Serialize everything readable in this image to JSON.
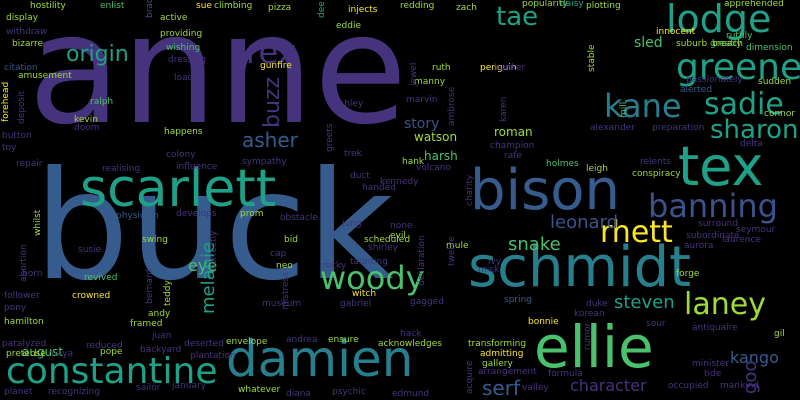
{
  "background": "#000000",
  "palette": {
    "indigo": "#46337e",
    "blue": "#365c8d",
    "slate": "#3b528b",
    "teal": "#277f8e",
    "teal_green": "#1fa187",
    "green": "#4ac16d",
    "lime": "#a0da39",
    "yellow": "#fde725",
    "purple": "#472d7b"
  },
  "words": [
    {
      "text": "anne"
    },
    {
      "text": "buck"
    },
    {
      "text": "schmidt"
    },
    {
      "text": "scarlett"
    },
    {
      "text": "bison"
    },
    {
      "text": "tex"
    },
    {
      "text": "lodge"
    },
    {
      "text": "damien"
    },
    {
      "text": "ellie"
    },
    {
      "text": "constantine"
    },
    {
      "text": "greene"
    },
    {
      "text": "kane"
    },
    {
      "text": "sadie"
    },
    {
      "text": "sharon"
    },
    {
      "text": "banning"
    },
    {
      "text": "rhett"
    },
    {
      "text": "woody"
    },
    {
      "text": "laney"
    },
    {
      "text": "tae"
    },
    {
      "text": "origin"
    },
    {
      "text": "rex"
    },
    {
      "text": "asher"
    },
    {
      "text": "buzz"
    },
    {
      "text": "leonard"
    },
    {
      "text": "snake"
    },
    {
      "text": "eye"
    },
    {
      "text": "melanie"
    },
    {
      "text": "steven"
    },
    {
      "text": "character"
    },
    {
      "text": "serf"
    },
    {
      "text": "kango"
    },
    {
      "text": "goo"
    },
    {
      "text": "story"
    },
    {
      "text": "watson"
    },
    {
      "text": "harsh"
    },
    {
      "text": "roman"
    },
    {
      "text": "sled"
    },
    {
      "text": "august"
    },
    {
      "text": "hostility"
    },
    {
      "text": "enlist"
    },
    {
      "text": "brad"
    },
    {
      "text": "sue"
    },
    {
      "text": "climbing"
    },
    {
      "text": "pizza"
    },
    {
      "text": "dee"
    },
    {
      "text": "injects"
    },
    {
      "text": "redding"
    },
    {
      "text": "zach"
    },
    {
      "text": "popularity"
    },
    {
      "text": "daisy"
    },
    {
      "text": "plotting"
    },
    {
      "text": "apprehended"
    },
    {
      "text": "display"
    },
    {
      "text": "active"
    },
    {
      "text": "eddie"
    },
    {
      "text": "withdraw"
    },
    {
      "text": "providing"
    },
    {
      "text": "bizarre"
    },
    {
      "text": "wishing"
    },
    {
      "text": "dressing"
    },
    {
      "text": "gunfire"
    },
    {
      "text": "penguin"
    },
    {
      "text": "bunker"
    },
    {
      "text": "innocent"
    },
    {
      "text": "ruthly"
    },
    {
      "text": "greatly"
    },
    {
      "text": "suburb"
    },
    {
      "text": "breach"
    },
    {
      "text": "dimension"
    },
    {
      "text": "passionately"
    },
    {
      "text": "sudden"
    },
    {
      "text": "alerted"
    },
    {
      "text": "connor"
    },
    {
      "text": "citation"
    },
    {
      "text": "amusement"
    },
    {
      "text": "forehead"
    },
    {
      "text": "deposit"
    },
    {
      "text": "load"
    },
    {
      "text": "ruth"
    },
    {
      "text": "manny"
    },
    {
      "text": "jewel"
    },
    {
      "text": "stable"
    },
    {
      "text": "ralph"
    },
    {
      "text": "kevin"
    },
    {
      "text": "doom"
    },
    {
      "text": "ashley"
    },
    {
      "text": "marvin"
    },
    {
      "text": "ambrose"
    },
    {
      "text": "karen"
    },
    {
      "text": "mill"
    },
    {
      "text": "alexander"
    },
    {
      "text": "preparation"
    },
    {
      "text": "button"
    },
    {
      "text": "toy"
    },
    {
      "text": "happens"
    },
    {
      "text": "greets"
    },
    {
      "text": "champion"
    },
    {
      "text": "delta"
    },
    {
      "text": "repair"
    },
    {
      "text": "influence"
    },
    {
      "text": "colony"
    },
    {
      "text": "sympathy"
    },
    {
      "text": "trek"
    },
    {
      "text": "hank"
    },
    {
      "text": "rafe"
    },
    {
      "text": "holmes"
    },
    {
      "text": "relents"
    },
    {
      "text": "realising"
    },
    {
      "text": "volcano"
    },
    {
      "text": "leigh"
    },
    {
      "text": "conspiracy"
    },
    {
      "text": "duct"
    },
    {
      "text": "kennedy"
    },
    {
      "text": "handed"
    },
    {
      "text": "charity"
    },
    {
      "text": "whilst"
    },
    {
      "text": "abortion"
    },
    {
      "text": "physician"
    },
    {
      "text": "develops"
    },
    {
      "text": "prom"
    },
    {
      "text": "obstacle"
    },
    {
      "text": "jung"
    },
    {
      "text": "none"
    },
    {
      "text": "scheduled"
    },
    {
      "text": "surround"
    },
    {
      "text": "subordinate"
    },
    {
      "text": "seymour"
    },
    {
      "text": "laurence"
    },
    {
      "text": "evil"
    },
    {
      "text": "declaration"
    },
    {
      "text": "mule"
    },
    {
      "text": "twelve"
    },
    {
      "text": "aurora"
    },
    {
      "text": "susie"
    },
    {
      "text": "swing"
    },
    {
      "text": "bid"
    },
    {
      "text": "correctly"
    },
    {
      "text": "shirley"
    },
    {
      "text": "forge"
    },
    {
      "text": "horn"
    },
    {
      "text": "cap"
    },
    {
      "text": "neo"
    },
    {
      "text": "taunting"
    },
    {
      "text": "ivy"
    },
    {
      "text": "misk"
    },
    {
      "text": "follower"
    },
    {
      "text": "revived"
    },
    {
      "text": "rocky"
    },
    {
      "text": "witch"
    },
    {
      "text": "gabriel"
    },
    {
      "text": "spring"
    },
    {
      "text": "pony"
    },
    {
      "text": "crowned"
    },
    {
      "text": "bernard"
    },
    {
      "text": "teddy"
    },
    {
      "text": "mistress"
    },
    {
      "text": "gagged"
    },
    {
      "text": "duke"
    },
    {
      "text": "hamilton"
    },
    {
      "text": "andy"
    },
    {
      "text": "framed"
    },
    {
      "text": "museum"
    },
    {
      "text": "korean"
    },
    {
      "text": "sour"
    },
    {
      "text": "juan"
    },
    {
      "text": "bonnie"
    },
    {
      "text": "antiquaire"
    },
    {
      "text": "paralyzed"
    },
    {
      "text": "reduced"
    },
    {
      "text": "envelope"
    },
    {
      "text": "hack"
    },
    {
      "text": "acknowledges"
    },
    {
      "text": "gil"
    },
    {
      "text": "pretense"
    },
    {
      "text": "maya"
    },
    {
      "text": "pope"
    },
    {
      "text": "backyard"
    },
    {
      "text": "deserted"
    },
    {
      "text": "andrea"
    },
    {
      "text": "ensure"
    },
    {
      "text": "transforming"
    },
    {
      "text": "plantation"
    },
    {
      "text": "admitting"
    },
    {
      "text": "rumor"
    },
    {
      "text": "minister"
    },
    {
      "text": "gallery"
    },
    {
      "text": "formula"
    },
    {
      "text": "arrangement"
    },
    {
      "text": "tide"
    },
    {
      "text": "sailor"
    },
    {
      "text": "january"
    },
    {
      "text": "whatever"
    },
    {
      "text": "diana"
    },
    {
      "text": "psychic"
    },
    {
      "text": "edmund"
    },
    {
      "text": "acquire"
    },
    {
      "text": "valley"
    },
    {
      "text": "occupied"
    },
    {
      "text": "mankind"
    },
    {
      "text": "planet"
    },
    {
      "text": "recognizing"
    }
  ]
}
